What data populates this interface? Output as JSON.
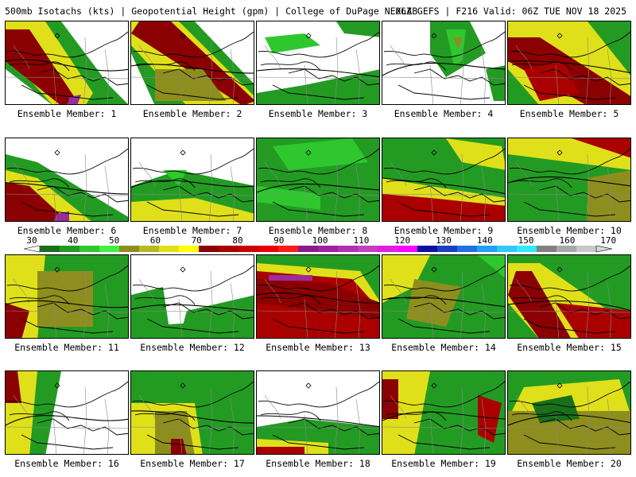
{
  "header": {
    "left": "500mb Isotachs (kts) | Geopotential Height (gpm) | College of DuPage NEXLAB",
    "right": "06Z GEFS | F216 Valid: 06Z TUE NOV 18 2025"
  },
  "colorbar": {
    "ticks": [
      "30",
      "40",
      "50",
      "60",
      "70",
      "80",
      "90",
      "100",
      "110",
      "120",
      "130",
      "140",
      "150",
      "160",
      "170"
    ],
    "colors": [
      "#1a6f1a",
      "#239b23",
      "#2ec82e",
      "#44ee44",
      "#8e8e1e",
      "#b8b820",
      "#e0e01a",
      "#ffff00",
      "#8b0000",
      "#aa0000",
      "#c80000",
      "#e80000",
      "#ff1a1a",
      "#8b1a8b",
      "#a020a0",
      "#b030b0",
      "#c040c0",
      "#e020e0",
      "#ff00ff",
      "#1010a0",
      "#1a40c0",
      "#2070e0",
      "#20a0f0",
      "#30c8f8",
      "#30e8f8",
      "#808080",
      "#a8a8a8",
      "#c8c8c8"
    ]
  },
  "panels": [
    {
      "caption": "Ensemble Member: 1"
    },
    {
      "caption": "Ensemble Member: 2"
    },
    {
      "caption": "Ensemble Member: 3"
    },
    {
      "caption": "Ensemble Member: 4"
    },
    {
      "caption": "Ensemble Member: 5"
    },
    {
      "caption": "Ensemble Member: 6"
    },
    {
      "caption": "Ensemble Member: 7"
    },
    {
      "caption": "Ensemble Member: 8"
    },
    {
      "caption": "Ensemble Member: 9"
    },
    {
      "caption": "Ensemble Member: 10"
    },
    {
      "caption": "Ensemble Member: 11"
    },
    {
      "caption": "Ensemble Member: 12"
    },
    {
      "caption": "Ensemble Member: 13"
    },
    {
      "caption": "Ensemble Member: 14"
    },
    {
      "caption": "Ensemble Member: 15"
    },
    {
      "caption": "Ensemble Member: 16"
    },
    {
      "caption": "Ensemble Member: 17"
    },
    {
      "caption": "Ensemble Member: 18"
    },
    {
      "caption": "Ensemble Member: 19"
    },
    {
      "caption": "Ensemble Member: 20"
    }
  ]
}
